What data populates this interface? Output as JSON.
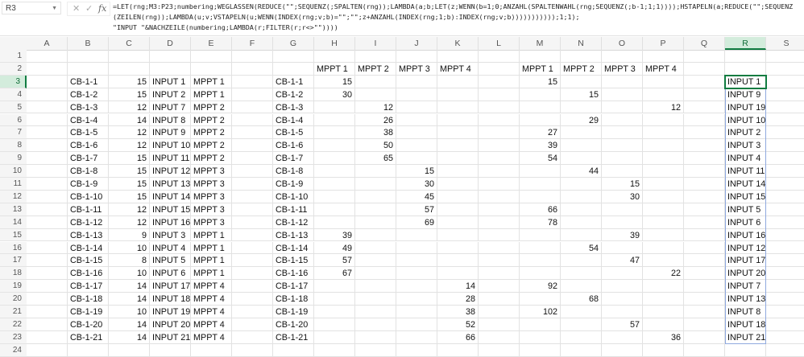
{
  "formula_bar": {
    "name_box": "R3",
    "cancel_icon": "✕",
    "enter_icon": "✓",
    "fx_label": "fx",
    "formula": "=LET(rng;M3:P23;numbering;WEGLASSEN(REDUCE(\"\";SEQUENZ(;SPALTEN(rng));LAMBDA(a;b;LET(z;WENN(b=1;0;ANZAHL(SPALTENWAHL(rng;SEQUENZ(;b-1;1;1))));HSTAPELN(a;REDUCE(\"\";SEQUENZ(ZEILEN(rng));LAMBDA(u;v;VSTAPELN(u;WENN(INDEX(rng;v;b)=\"\";\"\";z+ANZAHL(INDEX(rng;1;b):INDEX(rng;v;b)))))))))));1;1);\n\"INPUT \"&NACHZEILE(numbering;LAMBDA(r;FILTER(r;r<>\"\"))))"
  },
  "selected_cell": "R3",
  "columns": [
    "A",
    "B",
    "C",
    "D",
    "E",
    "F",
    "G",
    "H",
    "I",
    "J",
    "K",
    "L",
    "M",
    "N",
    "O",
    "P",
    "Q",
    "R",
    "S"
  ],
  "grid": {
    "rows": [
      {
        "n": "1",
        "cells": {}
      },
      {
        "n": "2",
        "cells": {
          "H": "MPPT 1",
          "I": "MPPT 2",
          "J": "MPPT 3",
          "K": "MPPT 4",
          "M": "MPPT 1",
          "N": "MPPT 2",
          "O": "MPPT 3",
          "P": "MPPT 4"
        }
      },
      {
        "n": "3",
        "cells": {
          "B": "CB-1-1",
          "C": 15,
          "D": "INPUT 1",
          "E": "MPPT 1",
          "G": "CB-1-1",
          "H": 15,
          "M": 15,
          "R": "INPUT 1"
        }
      },
      {
        "n": "4",
        "cells": {
          "B": "CB-1-2",
          "C": 15,
          "D": "INPUT 2",
          "E": "MPPT 1",
          "G": "CB-1-2",
          "H": 30,
          "N": 15,
          "R": "INPUT 9"
        }
      },
      {
        "n": "5",
        "cells": {
          "B": "CB-1-3",
          "C": 12,
          "D": "INPUT 7",
          "E": "MPPT 2",
          "G": "CB-1-3",
          "I": 12,
          "P": 12,
          "R": "INPUT 19"
        }
      },
      {
        "n": "6",
        "cells": {
          "B": "CB-1-4",
          "C": 14,
          "D": "INPUT 8",
          "E": "MPPT 2",
          "G": "CB-1-4",
          "I": 26,
          "N": 29,
          "R": "INPUT 10"
        }
      },
      {
        "n": "7",
        "cells": {
          "B": "CB-1-5",
          "C": 12,
          "D": "INPUT 9",
          "E": "MPPT 2",
          "G": "CB-1-5",
          "I": 38,
          "M": 27,
          "R": "INPUT 2"
        }
      },
      {
        "n": "8",
        "cells": {
          "B": "CB-1-6",
          "C": 12,
          "D": "INPUT 10",
          "E": "MPPT 2",
          "G": "CB-1-6",
          "I": 50,
          "M": 39,
          "R": "INPUT 3"
        }
      },
      {
        "n": "9",
        "cells": {
          "B": "CB-1-7",
          "C": 15,
          "D": "INPUT 11",
          "E": "MPPT 2",
          "G": "CB-1-7",
          "I": 65,
          "M": 54,
          "R": "INPUT 4"
        }
      },
      {
        "n": "10",
        "cells": {
          "B": "CB-1-8",
          "C": 15,
          "D": "INPUT 12",
          "E": "MPPT 3",
          "G": "CB-1-8",
          "J": 15,
          "N": 44,
          "R": "INPUT 11"
        }
      },
      {
        "n": "11",
        "cells": {
          "B": "CB-1-9",
          "C": 15,
          "D": "INPUT 13",
          "E": "MPPT 3",
          "G": "CB-1-9",
          "J": 30,
          "O": 15,
          "R": "INPUT 14"
        }
      },
      {
        "n": "12",
        "cells": {
          "B": "CB-1-10",
          "C": 15,
          "D": "INPUT 14",
          "E": "MPPT 3",
          "G": "CB-1-10",
          "J": 45,
          "O": 30,
          "R": "INPUT 15"
        }
      },
      {
        "n": "13",
        "cells": {
          "B": "CB-1-11",
          "C": 12,
          "D": "INPUT 15",
          "E": "MPPT 3",
          "G": "CB-1-11",
          "J": 57,
          "M": 66,
          "R": "INPUT 5"
        }
      },
      {
        "n": "14",
        "cells": {
          "B": "CB-1-12",
          "C": 12,
          "D": "INPUT 16",
          "E": "MPPT 3",
          "G": "CB-1-12",
          "J": 69,
          "M": 78,
          "R": "INPUT 6"
        }
      },
      {
        "n": "15",
        "cells": {
          "B": "CB-1-13",
          "C": 9,
          "D": "INPUT 3",
          "E": "MPPT 1",
          "G": "CB-1-13",
          "H": 39,
          "O": 39,
          "R": "INPUT 16"
        }
      },
      {
        "n": "16",
        "cells": {
          "B": "CB-1-14",
          "C": 10,
          "D": "INPUT 4",
          "E": "MPPT 1",
          "G": "CB-1-14",
          "H": 49,
          "N": 54,
          "R": "INPUT 12"
        }
      },
      {
        "n": "17",
        "cells": {
          "B": "CB-1-15",
          "C": 8,
          "D": "INPUT 5",
          "E": "MPPT 1",
          "G": "CB-1-15",
          "H": 57,
          "O": 47,
          "R": "INPUT 17"
        }
      },
      {
        "n": "18",
        "cells": {
          "B": "CB-1-16",
          "C": 10,
          "D": "INPUT 6",
          "E": "MPPT 1",
          "G": "CB-1-16",
          "H": 67,
          "P": 22,
          "R": "INPUT 20"
        }
      },
      {
        "n": "19",
        "cells": {
          "B": "CB-1-17",
          "C": 14,
          "D": "INPUT 17",
          "E": "MPPT 4",
          "G": "CB-1-17",
          "K": 14,
          "M": 92,
          "R": "INPUT 7"
        }
      },
      {
        "n": "20",
        "cells": {
          "B": "CB-1-18",
          "C": 14,
          "D": "INPUT 18",
          "E": "MPPT 4",
          "G": "CB-1-18",
          "K": 28,
          "N": 68,
          "R": "INPUT 13"
        }
      },
      {
        "n": "21",
        "cells": {
          "B": "CB-1-19",
          "C": 10,
          "D": "INPUT 19",
          "E": "MPPT 4",
          "G": "CB-1-19",
          "K": 38,
          "M": 102,
          "R": "INPUT 8"
        }
      },
      {
        "n": "22",
        "cells": {
          "B": "CB-1-20",
          "C": 14,
          "D": "INPUT 20",
          "E": "MPPT 4",
          "G": "CB-1-20",
          "K": 52,
          "O": 57,
          "R": "INPUT 18"
        }
      },
      {
        "n": "23",
        "cells": {
          "B": "CB-1-21",
          "C": 14,
          "D": "INPUT 21",
          "E": "MPPT 4",
          "G": "CB-1-21",
          "K": 66,
          "P": 36,
          "R": "INPUT 21"
        }
      },
      {
        "n": "24",
        "cells": {}
      }
    ]
  }
}
